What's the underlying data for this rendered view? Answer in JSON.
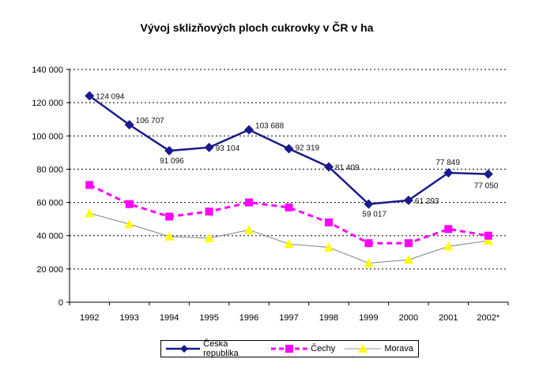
{
  "chart_data": {
    "type": "line",
    "title": "Vývoj sklizňových ploch cukrovky v ČR v ha",
    "categories": [
      "1992",
      "1993",
      "1994",
      "1995",
      "1996",
      "1997",
      "1998",
      "1999",
      "2000",
      "2001",
      "2002*"
    ],
    "ylim": [
      0,
      140000
    ],
    "yticks": [
      "0",
      "20 000",
      "40 000",
      "60 000",
      "80 000",
      "100 000",
      "120 000",
      "140 000"
    ],
    "grid": true,
    "legend_position": "bottom",
    "series": [
      {
        "name": "Česká republika",
        "color": "#1a1a8c",
        "marker": "diamond",
        "line": "solid",
        "values": [
          124094,
          106707,
          91096,
          93104,
          103688,
          92319,
          81409,
          59017,
          61293,
          77849,
          77050
        ],
        "labels": [
          "124 094",
          "106 707",
          "91 096",
          "93 104",
          "103 688",
          "92 319",
          "81 409",
          "59 017",
          "61 293",
          "77 849",
          "77 050"
        ]
      },
      {
        "name": "Čechy",
        "color": "#ff00ff",
        "marker": "square",
        "line": "dashed",
        "values": [
          70500,
          59000,
          51500,
          54500,
          60000,
          57000,
          48000,
          35500,
          35500,
          44000,
          40000
        ]
      },
      {
        "name": "Morava",
        "color": "#ffff00",
        "marker": "triangle",
        "line": "thin",
        "values": [
          53500,
          47000,
          39500,
          38500,
          43500,
          35000,
          33000,
          23500,
          25500,
          33500,
          37000
        ]
      }
    ]
  }
}
